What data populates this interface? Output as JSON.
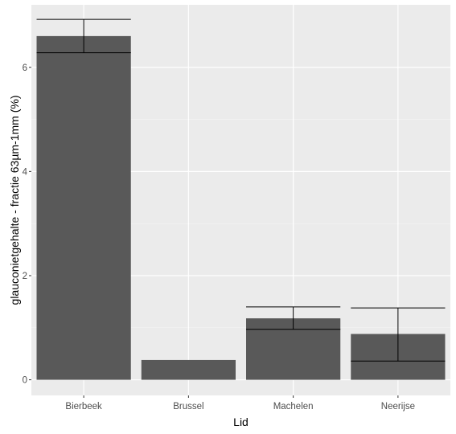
{
  "chart_data": {
    "type": "bar",
    "title": "",
    "xlabel": "Lid",
    "ylabel": "glauconietgehalte - fractie 63µm-1mm (%)",
    "categories": [
      "Bierbeek",
      "Brussel",
      "Machelen",
      "Neerijse"
    ],
    "values": [
      6.6,
      0.38,
      1.18,
      0.88
    ],
    "error_bars": [
      {
        "low": 6.28,
        "high": 6.92
      },
      null,
      {
        "low": 0.97,
        "high": 1.4
      },
      {
        "low": 0.36,
        "high": 1.38
      }
    ],
    "ylim": [
      -0.3,
      7.2
    ],
    "yticks": [
      0,
      2,
      4,
      6
    ],
    "ytick_labels": [
      "0",
      "2",
      "4",
      "6"
    ],
    "grid": true,
    "legend": "none",
    "colors": {
      "panel_background": "#ebebeb",
      "grid_major": "#ffffff",
      "grid_minor": "#f5f5f5",
      "bar_fill": "#595959",
      "error_bar": "#000000",
      "tick_mark": "#333333",
      "tick_label": "#4d4d4d"
    }
  }
}
